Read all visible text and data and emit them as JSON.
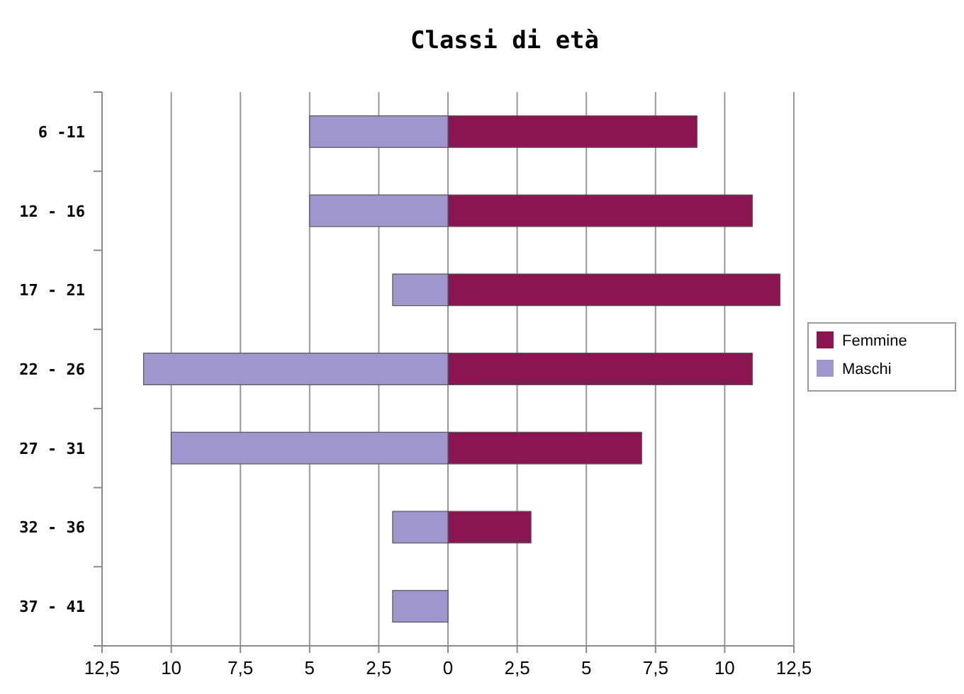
{
  "chart_data": {
    "type": "bar",
    "title": "Classi di età",
    "orientation": "horizontal",
    "stacked": true,
    "categories": [
      "6 -11",
      "12 - 16",
      "17 - 21",
      "22 - 26",
      "27 - 31",
      "32 - 36",
      "37 - 41"
    ],
    "series": [
      {
        "name": "Femmine",
        "color": "#8b1550",
        "values": [
          9,
          11,
          12,
          11,
          7,
          3,
          null
        ]
      },
      {
        "name": "Maschi",
        "color": "#9e96cc",
        "values": [
          -5,
          -5,
          -2,
          -11,
          -10,
          -2,
          -2
        ]
      }
    ],
    "xlim": [
      -12.5,
      12.5
    ],
    "xticks": [
      {
        "value": -12.5,
        "label": "12,5"
      },
      {
        "value": -10,
        "label": "10"
      },
      {
        "value": -7.5,
        "label": "7,5"
      },
      {
        "value": -5,
        "label": "5"
      },
      {
        "value": -2.5,
        "label": "2,5"
      },
      0,
      {
        "value": 2.5,
        "label": "2,5"
      },
      5,
      {
        "value": 7.5,
        "label": "7,5"
      },
      10,
      {
        "value": 12.5,
        "label": "12,5"
      }
    ],
    "grid": "x",
    "legend": "right"
  }
}
